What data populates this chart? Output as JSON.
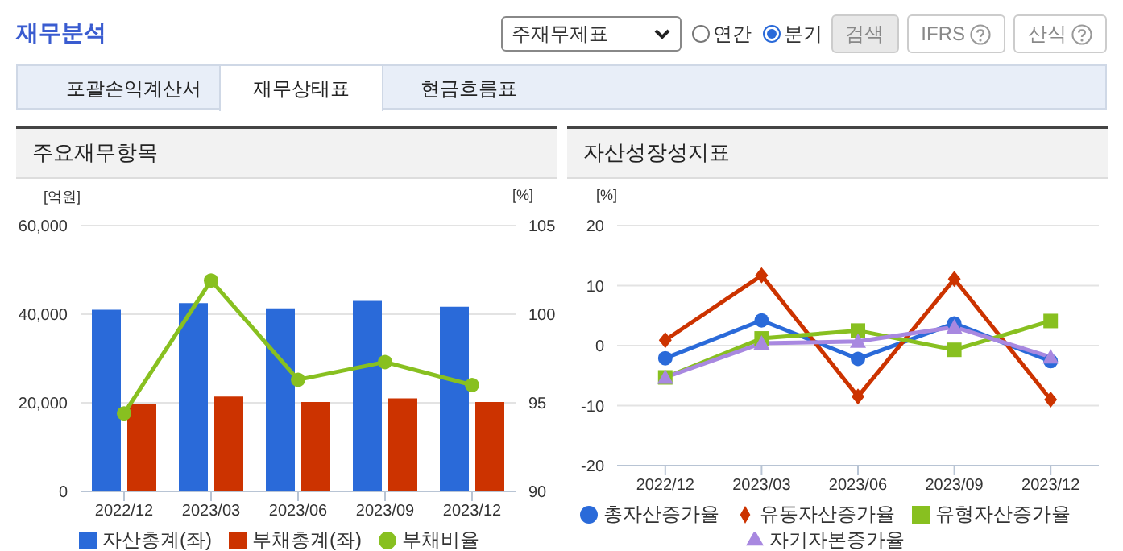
{
  "chart_data": [
    {
      "type": "bar",
      "title": "주요재무항목",
      "annotations": [
        "재무분석",
        "주재무제표",
        "연간",
        "분기",
        "검색",
        "IFRS",
        "산식",
        "포괄손익계산서",
        "재무상태표",
        "현금흐름표"
      ],
      "categories": [
        "2022/12",
        "2023/03",
        "2023/06",
        "2023/09",
        "2023/12"
      ],
      "ylabel": "[억원]",
      "y2label": "[%]",
      "series": [
        {
          "name": "자산총계(좌)",
          "color": "#2a6ad9",
          "values": [
            41000,
            42500,
            41300,
            43000,
            41700
          ]
        },
        {
          "name": "부채총계(좌)",
          "color": "#cc3300",
          "values": [
            19800,
            21400,
            20200,
            21000,
            20200
          ]
        },
        {
          "name": "부채비율",
          "type": "line",
          "axis": "y2",
          "color": "#88c020",
          "marker": "circle",
          "values": [
            94.4,
            101.9,
            96.3,
            97.3,
            96.0
          ]
        }
      ],
      "ylim": [
        0,
        60000
      ],
      "yticks": [
        0,
        {
          "value": 20000,
          "label": "20,000"
        },
        {
          "value": 40000,
          "label": "40,000"
        },
        {
          "value": 60000,
          "label": "60,000"
        }
      ],
      "y2lim": [
        90,
        105
      ],
      "y2ticks": [
        90,
        95,
        100,
        105
      ],
      "grid": "y",
      "legend": "bottom"
    },
    {
      "type": "line",
      "title": "자산성장성지표",
      "categories": [
        "2022/12",
        "2023/03",
        "2023/06",
        "2023/09",
        "2023/12"
      ],
      "ylabel": "[%]",
      "series": [
        {
          "name": "총자산증가율",
          "color": "#2a6ad9",
          "marker": "circle",
          "values": [
            -2.1,
            4.2,
            -2.2,
            3.7,
            -2.6
          ]
        },
        {
          "name": "유동자산증가율",
          "color": "#cc3300",
          "marker": "diamond",
          "values": [
            0.9,
            11.7,
            -8.5,
            11.1,
            -9.0
          ]
        },
        {
          "name": "유형자산증가율",
          "color": "#88c020",
          "marker": "square",
          "values": [
            -5.3,
            1.2,
            2.5,
            -0.7,
            4.1
          ]
        },
        {
          "name": "자기자본증가율",
          "color": "#a888e0",
          "marker": "triangle",
          "values": [
            -5.3,
            0.4,
            0.7,
            3.1,
            -1.9
          ]
        }
      ],
      "ylim": [
        -20,
        20
      ],
      "yticks": [
        -20,
        -10,
        0,
        10,
        20
      ],
      "grid": "y",
      "legend": "bottom"
    }
  ]
}
